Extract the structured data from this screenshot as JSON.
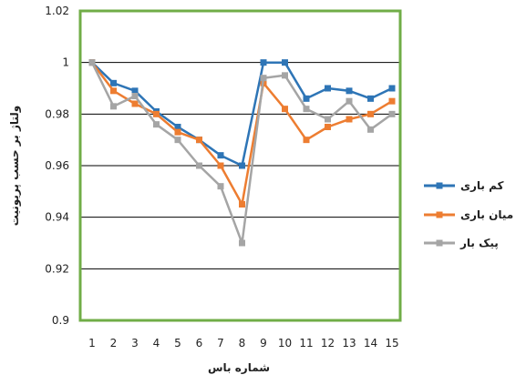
{
  "chart_data": {
    "type": "line",
    "xlabel": "شماره باس",
    "ylabel": "ولتاژ بر حسب پریونیت",
    "ylim": [
      0.9,
      1.02
    ],
    "yticks": [
      "0.9",
      "0.92",
      "0.94",
      "0.96",
      "0.98",
      "1",
      "1.02"
    ],
    "grid": true,
    "legend_position": "right",
    "x": [
      "1",
      "2",
      "3",
      "4",
      "5",
      "6",
      "7",
      "8",
      "9",
      "10",
      "11",
      "12",
      "13",
      "14",
      "15"
    ],
    "series": [
      {
        "name": "کم باری",
        "color": "#2E75B6",
        "marker": "square",
        "values": [
          1.0,
          0.992,
          0.989,
          0.981,
          0.975,
          0.97,
          0.964,
          0.96,
          1.0,
          1.0,
          0.986,
          0.99,
          0.989,
          0.986,
          0.99
        ]
      },
      {
        "name": "میان باری",
        "color": "#ED7D31",
        "marker": "square",
        "values": [
          1.0,
          0.989,
          0.984,
          0.98,
          0.973,
          0.97,
          0.96,
          0.945,
          0.992,
          0.982,
          0.97,
          0.975,
          0.978,
          0.98,
          0.985
        ]
      },
      {
        "name": "پیک بار",
        "color": "#A5A5A5",
        "marker": "square",
        "values": [
          1.0,
          0.983,
          0.987,
          0.976,
          0.97,
          0.96,
          0.952,
          0.93,
          0.994,
          0.995,
          0.982,
          0.978,
          0.985,
          0.974,
          0.98
        ]
      }
    ],
    "plot_border_color": "#70AD47"
  }
}
